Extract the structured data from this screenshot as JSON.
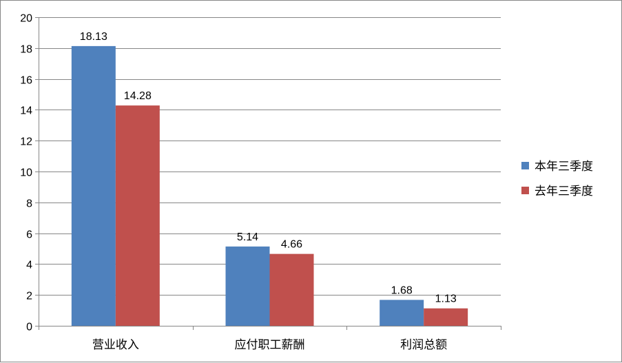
{
  "chart_data": {
    "type": "bar",
    "categories": [
      "营业收入",
      "应付职工薪酬",
      "利润总额"
    ],
    "series": [
      {
        "name": "本年三季度",
        "values": [
          18.13,
          5.14,
          1.68
        ],
        "color": "#4F81BD"
      },
      {
        "name": "去年三季度",
        "values": [
          14.28,
          4.66,
          1.13
        ],
        "color": "#C0504D"
      }
    ],
    "data_labels": [
      [
        "18.13",
        "5.14",
        "1.68"
      ],
      [
        "14.28",
        "4.66",
        "1.13"
      ]
    ],
    "yticks": [
      "0",
      "2",
      "4",
      "6",
      "8",
      "10",
      "12",
      "14",
      "16",
      "18",
      "20"
    ],
    "ylim": [
      0,
      20
    ],
    "grid": true,
    "legend_position": "right",
    "gridline_color": "#868686",
    "axis_color": "#868686"
  }
}
